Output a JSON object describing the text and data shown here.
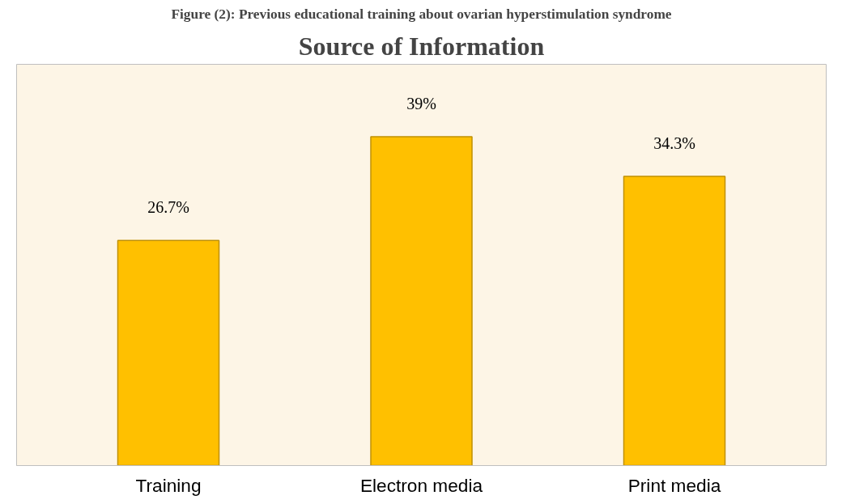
{
  "chart_data": {
    "type": "bar",
    "title": "Source of Information",
    "annotations": [
      "Figure (2): Previous educational training about ovarian hyperstimulation syndrome"
    ],
    "categories": [
      "Training",
      "Electron media",
      "Print media"
    ],
    "values": [
      26.7,
      39,
      34.3
    ],
    "value_labels": [
      "26.7%",
      "39%",
      "34.3%"
    ],
    "color": "#ffc000"
  }
}
